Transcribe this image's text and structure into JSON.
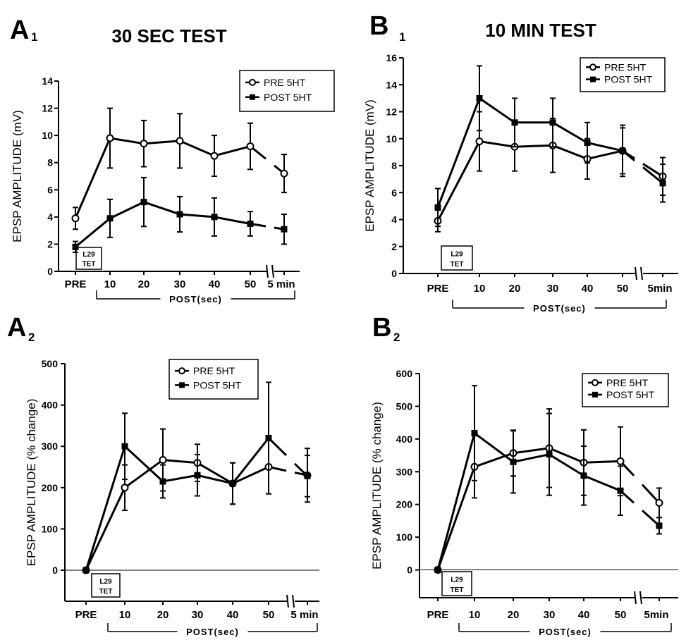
{
  "chart_data": [
    {
      "type": "line",
      "panel_label": "A",
      "panel_sub": "1",
      "title": "30   SEC   TEST",
      "ylabel": "EPSP AMPLITUDE (mV)",
      "ylim": [
        0,
        14
      ],
      "yticks": [
        "0",
        "2",
        "4",
        "6",
        "8",
        "10",
        "12",
        "14"
      ],
      "categories": [
        "PRE",
        "10",
        "20",
        "30",
        "40",
        "50",
        "5 min"
      ],
      "post_label": "POST(sec)",
      "tet_label": [
        "L29",
        "TET"
      ],
      "legend": [
        "PRE 5HT",
        "POST 5HT"
      ],
      "series": [
        {
          "name": "PRE 5HT",
          "marker": "open-circle",
          "values": [
            3.9,
            9.8,
            9.4,
            9.6,
            8.5,
            9.2,
            7.2
          ],
          "errors": [
            0.8,
            2.2,
            1.7,
            2.0,
            1.5,
            1.7,
            1.4
          ]
        },
        {
          "name": "POST 5HT",
          "marker": "filled-square",
          "values": [
            1.8,
            3.9,
            5.1,
            4.2,
            4.0,
            3.5,
            3.1
          ],
          "errors": [
            0.4,
            1.4,
            1.8,
            1.3,
            1.4,
            0.9,
            1.1
          ]
        }
      ]
    },
    {
      "type": "line",
      "panel_label": "B",
      "panel_sub": "1",
      "title": "10     MIN     TEST",
      "ylabel": "EPSP AMPLITUDE (mV)",
      "ylim": [
        0,
        16
      ],
      "yticks": [
        "0",
        "2",
        "4",
        "6",
        "8",
        "10",
        "12",
        "14",
        "16"
      ],
      "categories": [
        "PRE",
        "10",
        "20",
        "30",
        "40",
        "50",
        "5min"
      ],
      "post_label": "POST(sec)",
      "tet_label": [
        "L29",
        "TET"
      ],
      "legend": [
        "PRE 5HT",
        "POST 5HT"
      ],
      "series": [
        {
          "name": "PRE 5HT",
          "marker": "open-circle",
          "values": [
            3.9,
            9.8,
            9.4,
            9.5,
            8.5,
            9.1,
            7.2
          ],
          "errors": [
            0.8,
            2.2,
            1.8,
            2.0,
            1.5,
            1.7,
            1.4
          ]
        },
        {
          "name": "POST 5HT",
          "marker": "filled-square",
          "values": [
            4.9,
            13.0,
            11.2,
            11.2,
            9.7,
            9.1,
            6.7
          ],
          "errors": [
            1.4,
            2.4,
            1.8,
            1.8,
            1.5,
            1.9,
            1.4
          ]
        }
      ]
    },
    {
      "type": "line",
      "panel_label": "A",
      "panel_sub": "2",
      "title": "",
      "ylabel": "EPSP AMPLITUDE (% change)",
      "ylim": [
        -75,
        500
      ],
      "yticks": [
        "0",
        "100",
        "200",
        "300",
        "400",
        "500"
      ],
      "categories": [
        "PRE",
        "10",
        "20",
        "30",
        "40",
        "50",
        "5 min"
      ],
      "post_label": "POST(sec)",
      "tet_label": [
        "L29",
        "TET"
      ],
      "legend": [
        "PRE 5HT",
        "POST 5HT"
      ],
      "series": [
        {
          "name": "PRE 5HT",
          "marker": "open-circle",
          "values": [
            0,
            200,
            267,
            260,
            210,
            250,
            230
          ],
          "errors": [
            0,
            55,
            75,
            45,
            50,
            65,
            65
          ]
        },
        {
          "name": "POST 5HT",
          "marker": "filled-square",
          "values": [
            0,
            300,
            215,
            230,
            210,
            320,
            228
          ],
          "errors": [
            0,
            80,
            40,
            50,
            50,
            135,
            50
          ]
        }
      ]
    },
    {
      "type": "line",
      "panel_label": "B",
      "panel_sub": "2",
      "title": "",
      "ylabel": "EPSP AMPLITUDE (% change)",
      "ylim": [
        -85,
        600
      ],
      "yticks": [
        "0",
        "100",
        "200",
        "300",
        "400",
        "500",
        "600"
      ],
      "categories": [
        "PRE",
        "10",
        "20",
        "30",
        "40",
        "50",
        "5min"
      ],
      "post_label": "POST(sec)",
      "tet_label": [
        "L29",
        "TET"
      ],
      "legend": [
        "PRE 5HT",
        "POST 5HT"
      ],
      "series": [
        {
          "name": "PRE 5HT",
          "marker": "open-circle",
          "values": [
            0,
            315,
            357,
            372,
            328,
            332,
            205
          ],
          "errors": [
            0,
            95,
            70,
            120,
            100,
            105,
            45
          ]
        },
        {
          "name": "POST 5HT",
          "marker": "filled-square",
          "values": [
            0,
            418,
            330,
            353,
            288,
            242,
            135
          ],
          "errors": [
            0,
            145,
            95,
            125,
            90,
            75,
            25
          ]
        }
      ]
    }
  ]
}
